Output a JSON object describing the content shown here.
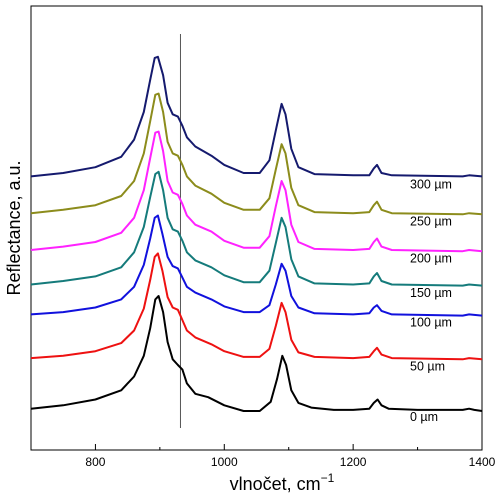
{
  "chart_data": {
    "type": "line",
    "xlabel": "vlnočet, cm",
    "xlabel_superscript": "−1",
    "ylabel": "Reflectance, a.u.",
    "xlim": [
      700,
      1400
    ],
    "x_ticks": [
      800,
      1000,
      1200,
      1400
    ],
    "y_ticks_labeled": false,
    "grid": false,
    "legend": "none",
    "vertical_reference_line_x": 932,
    "series": [
      {
        "name": "0 µm",
        "color": "#000000",
        "offset": 0,
        "points": [
          [
            700,
            0.02
          ],
          [
            750,
            0.05
          ],
          [
            800,
            0.1
          ],
          [
            840,
            0.18
          ],
          [
            860,
            0.3
          ],
          [
            875,
            0.48
          ],
          [
            885,
            0.72
          ],
          [
            893,
            0.97
          ],
          [
            898,
            1.0
          ],
          [
            905,
            0.86
          ],
          [
            912,
            0.6
          ],
          [
            920,
            0.45
          ],
          [
            928,
            0.4
          ],
          [
            935,
            0.36
          ],
          [
            942,
            0.24
          ],
          [
            955,
            0.15
          ],
          [
            975,
            0.12
          ],
          [
            1000,
            0.05
          ],
          [
            1030,
            0.0
          ],
          [
            1055,
            0.0
          ],
          [
            1072,
            0.08
          ],
          [
            1082,
            0.28
          ],
          [
            1090,
            0.48
          ],
          [
            1096,
            0.4
          ],
          [
            1104,
            0.18
          ],
          [
            1115,
            0.07
          ],
          [
            1135,
            0.03
          ],
          [
            1170,
            0.01
          ],
          [
            1200,
            0.01
          ],
          [
            1225,
            0.02
          ],
          [
            1232,
            0.07
          ],
          [
            1238,
            0.1
          ],
          [
            1244,
            0.05
          ],
          [
            1255,
            0.02
          ],
          [
            1300,
            0.01
          ],
          [
            1370,
            0.01
          ],
          [
            1380,
            0.02
          ],
          [
            1388,
            0.01
          ],
          [
            1400,
            0.0
          ]
        ]
      },
      {
        "name": "50 µm",
        "color": "#ee1111",
        "offset": 0.44,
        "points": [
          [
            700,
            0.02
          ],
          [
            750,
            0.04
          ],
          [
            800,
            0.08
          ],
          [
            840,
            0.15
          ],
          [
            860,
            0.26
          ],
          [
            875,
            0.45
          ],
          [
            885,
            0.7
          ],
          [
            892,
            0.9
          ],
          [
            897,
            0.93
          ],
          [
            904,
            0.78
          ],
          [
            912,
            0.55
          ],
          [
            920,
            0.46
          ],
          [
            928,
            0.44
          ],
          [
            935,
            0.35
          ],
          [
            942,
            0.26
          ],
          [
            955,
            0.2
          ],
          [
            980,
            0.14
          ],
          [
            1000,
            0.08
          ],
          [
            1030,
            0.03
          ],
          [
            1055,
            0.03
          ],
          [
            1070,
            0.1
          ],
          [
            1080,
            0.3
          ],
          [
            1089,
            0.5
          ],
          [
            1095,
            0.42
          ],
          [
            1104,
            0.18
          ],
          [
            1115,
            0.07
          ],
          [
            1140,
            0.03
          ],
          [
            1200,
            0.02
          ],
          [
            1225,
            0.03
          ],
          [
            1232,
            0.08
          ],
          [
            1237,
            0.11
          ],
          [
            1244,
            0.05
          ],
          [
            1260,
            0.02
          ],
          [
            1370,
            0.01
          ],
          [
            1380,
            0.02
          ],
          [
            1400,
            0.01
          ]
        ]
      },
      {
        "name": "100 µm",
        "color": "#1111dd",
        "offset": 0.82,
        "points": [
          [
            700,
            0.02
          ],
          [
            750,
            0.04
          ],
          [
            800,
            0.08
          ],
          [
            840,
            0.15
          ],
          [
            860,
            0.26
          ],
          [
            875,
            0.45
          ],
          [
            885,
            0.68
          ],
          [
            892,
            0.86
          ],
          [
            897,
            0.88
          ],
          [
            904,
            0.72
          ],
          [
            912,
            0.52
          ],
          [
            920,
            0.44
          ],
          [
            928,
            0.42
          ],
          [
            935,
            0.34
          ],
          [
            942,
            0.26
          ],
          [
            955,
            0.21
          ],
          [
            980,
            0.15
          ],
          [
            1000,
            0.09
          ],
          [
            1030,
            0.04
          ],
          [
            1055,
            0.04
          ],
          [
            1070,
            0.1
          ],
          [
            1080,
            0.28
          ],
          [
            1089,
            0.46
          ],
          [
            1095,
            0.4
          ],
          [
            1104,
            0.18
          ],
          [
            1115,
            0.08
          ],
          [
            1140,
            0.03
          ],
          [
            1200,
            0.02
          ],
          [
            1225,
            0.03
          ],
          [
            1232,
            0.08
          ],
          [
            1237,
            0.1
          ],
          [
            1244,
            0.05
          ],
          [
            1260,
            0.02
          ],
          [
            1370,
            0.01
          ],
          [
            1380,
            0.02
          ],
          [
            1400,
            0.01
          ]
        ]
      },
      {
        "name": "150 µm",
        "color": "#157b7b",
        "offset": 1.08,
        "points": [
          [
            700,
            0.02
          ],
          [
            750,
            0.05
          ],
          [
            800,
            0.09
          ],
          [
            840,
            0.17
          ],
          [
            860,
            0.3
          ],
          [
            875,
            0.52
          ],
          [
            885,
            0.78
          ],
          [
            893,
            0.98
          ],
          [
            898,
            1.0
          ],
          [
            905,
            0.84
          ],
          [
            912,
            0.6
          ],
          [
            920,
            0.5
          ],
          [
            928,
            0.48
          ],
          [
            935,
            0.4
          ],
          [
            942,
            0.3
          ],
          [
            955,
            0.23
          ],
          [
            980,
            0.17
          ],
          [
            1000,
            0.1
          ],
          [
            1030,
            0.04
          ],
          [
            1055,
            0.04
          ],
          [
            1070,
            0.14
          ],
          [
            1080,
            0.38
          ],
          [
            1089,
            0.6
          ],
          [
            1095,
            0.52
          ],
          [
            1104,
            0.24
          ],
          [
            1115,
            0.09
          ],
          [
            1140,
            0.03
          ],
          [
            1200,
            0.02
          ],
          [
            1225,
            0.03
          ],
          [
            1232,
            0.09
          ],
          [
            1237,
            0.12
          ],
          [
            1244,
            0.05
          ],
          [
            1260,
            0.02
          ],
          [
            1370,
            0.01
          ],
          [
            1380,
            0.02
          ],
          [
            1400,
            0.01
          ]
        ]
      },
      {
        "name": "200 µm",
        "color": "#ff22ff",
        "offset": 1.38,
        "points": [
          [
            700,
            0.02
          ],
          [
            750,
            0.05
          ],
          [
            800,
            0.09
          ],
          [
            840,
            0.17
          ],
          [
            860,
            0.3
          ],
          [
            875,
            0.54
          ],
          [
            885,
            0.82
          ],
          [
            893,
            1.04
          ],
          [
            898,
            1.05
          ],
          [
            905,
            0.88
          ],
          [
            912,
            0.62
          ],
          [
            920,
            0.52
          ],
          [
            928,
            0.5
          ],
          [
            935,
            0.42
          ],
          [
            942,
            0.32
          ],
          [
            955,
            0.24
          ],
          [
            980,
            0.18
          ],
          [
            1000,
            0.1
          ],
          [
            1030,
            0.04
          ],
          [
            1055,
            0.04
          ],
          [
            1070,
            0.14
          ],
          [
            1080,
            0.4
          ],
          [
            1089,
            0.62
          ],
          [
            1095,
            0.54
          ],
          [
            1104,
            0.24
          ],
          [
            1115,
            0.09
          ],
          [
            1140,
            0.03
          ],
          [
            1200,
            0.02
          ],
          [
            1225,
            0.03
          ],
          [
            1232,
            0.09
          ],
          [
            1237,
            0.12
          ],
          [
            1244,
            0.05
          ],
          [
            1260,
            0.02
          ],
          [
            1370,
            0.01
          ],
          [
            1380,
            0.02
          ],
          [
            1400,
            0.01
          ]
        ]
      },
      {
        "name": "250 µm",
        "color": "#8c8c1c",
        "offset": 1.7,
        "points": [
          [
            700,
            0.02
          ],
          [
            750,
            0.05
          ],
          [
            800,
            0.09
          ],
          [
            840,
            0.17
          ],
          [
            860,
            0.3
          ],
          [
            875,
            0.54
          ],
          [
            885,
            0.82
          ],
          [
            893,
            1.05
          ],
          [
            898,
            1.06
          ],
          [
            905,
            0.9
          ],
          [
            912,
            0.64
          ],
          [
            920,
            0.54
          ],
          [
            928,
            0.52
          ],
          [
            935,
            0.44
          ],
          [
            942,
            0.34
          ],
          [
            955,
            0.26
          ],
          [
            980,
            0.19
          ],
          [
            1000,
            0.11
          ],
          [
            1030,
            0.05
          ],
          [
            1055,
            0.05
          ],
          [
            1070,
            0.15
          ],
          [
            1080,
            0.4
          ],
          [
            1089,
            0.62
          ],
          [
            1095,
            0.54
          ],
          [
            1104,
            0.24
          ],
          [
            1115,
            0.09
          ],
          [
            1140,
            0.03
          ],
          [
            1200,
            0.02
          ],
          [
            1225,
            0.03
          ],
          [
            1232,
            0.09
          ],
          [
            1237,
            0.12
          ],
          [
            1244,
            0.05
          ],
          [
            1260,
            0.02
          ],
          [
            1370,
            0.01
          ],
          [
            1380,
            0.02
          ],
          [
            1400,
            0.01
          ]
        ]
      },
      {
        "name": "300 µm",
        "color": "#151a6e",
        "offset": 2.02,
        "points": [
          [
            700,
            0.02
          ],
          [
            750,
            0.05
          ],
          [
            800,
            0.1
          ],
          [
            840,
            0.19
          ],
          [
            860,
            0.34
          ],
          [
            875,
            0.58
          ],
          [
            885,
            0.86
          ],
          [
            892,
            1.05
          ],
          [
            897,
            1.06
          ],
          [
            905,
            0.9
          ],
          [
            912,
            0.66
          ],
          [
            920,
            0.56
          ],
          [
            928,
            0.54
          ],
          [
            935,
            0.46
          ],
          [
            942,
            0.36
          ],
          [
            955,
            0.28
          ],
          [
            980,
            0.2
          ],
          [
            1000,
            0.12
          ],
          [
            1030,
            0.05
          ],
          [
            1055,
            0.05
          ],
          [
            1070,
            0.16
          ],
          [
            1080,
            0.42
          ],
          [
            1089,
            0.65
          ],
          [
            1095,
            0.56
          ],
          [
            1104,
            0.26
          ],
          [
            1115,
            0.1
          ],
          [
            1140,
            0.04
          ],
          [
            1200,
            0.03
          ],
          [
            1225,
            0.03
          ],
          [
            1232,
            0.09
          ],
          [
            1237,
            0.12
          ],
          [
            1244,
            0.05
          ],
          [
            1260,
            0.03
          ],
          [
            1370,
            0.02
          ],
          [
            1380,
            0.03
          ],
          [
            1400,
            0.02
          ]
        ]
      }
    ]
  }
}
